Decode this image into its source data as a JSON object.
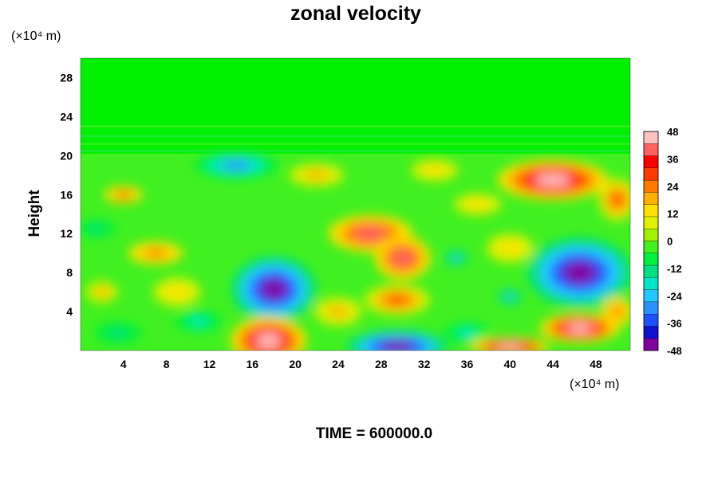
{
  "chart_data": {
    "type": "heatmap",
    "title": "zonal velocity",
    "ylabel": "Height",
    "x_unit_label": "(×10⁴ m)",
    "y_unit_label": "(×10⁴ m)",
    "x_ticks": [
      4,
      8,
      12,
      16,
      20,
      24,
      28,
      32,
      36,
      40,
      44,
      48
    ],
    "y_ticks": [
      4,
      8,
      12,
      16,
      20,
      24,
      28
    ],
    "xlim": [
      0,
      51.2
    ],
    "ylim": [
      0,
      30
    ],
    "colorbar": {
      "min": -48,
      "max": 48,
      "step": 6,
      "tick_labels": [
        48,
        36,
        24,
        12,
        0,
        -12,
        -24,
        -36,
        -48
      ],
      "colors": [
        "#8000a0",
        "#1010d0",
        "#2050ff",
        "#2c90ff",
        "#20c8ff",
        "#00e6c8",
        "#00e080",
        "#00f040",
        "#40f020",
        "#a0f000",
        "#e0f000",
        "#ffe000",
        "#ffb000",
        "#ff7a00",
        "#ff3a00",
        "#ff0000",
        "#ff6060",
        "#ffc0c0"
      ]
    },
    "anomalies": [
      {
        "x": 18,
        "y": 6.3,
        "value": -44,
        "rx": 4.2,
        "ry": 3.6
      },
      {
        "x": 46.5,
        "y": 8,
        "value": -46,
        "rx": 5.2,
        "ry": 3.8
      },
      {
        "x": 14.5,
        "y": 19,
        "value": -32,
        "rx": 4.5,
        "ry": 1.6
      },
      {
        "x": 29.5,
        "y": 0.4,
        "value": -48,
        "rx": 5,
        "ry": 1.8
      },
      {
        "x": 11,
        "y": 3,
        "value": -20,
        "rx": 3,
        "ry": 1.5
      },
      {
        "x": 36,
        "y": 1.8,
        "value": -20,
        "rx": 3,
        "ry": 1.5
      },
      {
        "x": 35,
        "y": 9.5,
        "value": -24,
        "rx": 1.5,
        "ry": 1
      },
      {
        "x": 40,
        "y": 5.5,
        "value": -24,
        "rx": 1.5,
        "ry": 1
      },
      {
        "x": 3.5,
        "y": 1.8,
        "value": -16,
        "rx": 3,
        "ry": 1.5
      },
      {
        "x": 1.5,
        "y": 12.5,
        "value": -16,
        "rx": 2.5,
        "ry": 1.2
      },
      {
        "x": 17.5,
        "y": 1,
        "value": 46,
        "rx": 3.8,
        "ry": 2.6
      },
      {
        "x": 27,
        "y": 12,
        "value": 38,
        "rx": 4.5,
        "ry": 2.2
      },
      {
        "x": 30,
        "y": 9.5,
        "value": 40,
        "rx": 3,
        "ry": 2.6
      },
      {
        "x": 29.5,
        "y": 5.2,
        "value": 30,
        "rx": 3.5,
        "ry": 1.8
      },
      {
        "x": 44,
        "y": 17.5,
        "value": 46,
        "rx": 5.5,
        "ry": 2.2
      },
      {
        "x": 46.5,
        "y": 2.3,
        "value": 46,
        "rx": 4,
        "ry": 1.6
      },
      {
        "x": 40,
        "y": 0.4,
        "value": 44,
        "rx": 4,
        "ry": 1
      },
      {
        "x": 7,
        "y": 10,
        "value": 26,
        "rx": 3.5,
        "ry": 1.6
      },
      {
        "x": 4,
        "y": 16,
        "value": 28,
        "rx": 2.5,
        "ry": 1.2
      },
      {
        "x": 50,
        "y": 15.5,
        "value": 30,
        "rx": 2,
        "ry": 2.5
      },
      {
        "x": 22,
        "y": 18,
        "value": 16,
        "rx": 3.5,
        "ry": 1.6
      },
      {
        "x": 33,
        "y": 18.5,
        "value": 14,
        "rx": 3,
        "ry": 1.5
      },
      {
        "x": 24,
        "y": 4,
        "value": 18,
        "rx": 3,
        "ry": 2
      },
      {
        "x": 9,
        "y": 6,
        "value": 14,
        "rx": 3,
        "ry": 2
      },
      {
        "x": 2,
        "y": 6,
        "value": 20,
        "rx": 2,
        "ry": 1.5
      },
      {
        "x": 40,
        "y": 10.5,
        "value": 14,
        "rx": 3,
        "ry": 2
      },
      {
        "x": 37,
        "y": 15,
        "value": 14,
        "rx": 3,
        "ry": 1.5
      },
      {
        "x": 50,
        "y": 4,
        "value": 24,
        "rx": 2,
        "ry": 2
      }
    ]
  },
  "footer": {
    "time_label": "TIME = 600000.0"
  }
}
